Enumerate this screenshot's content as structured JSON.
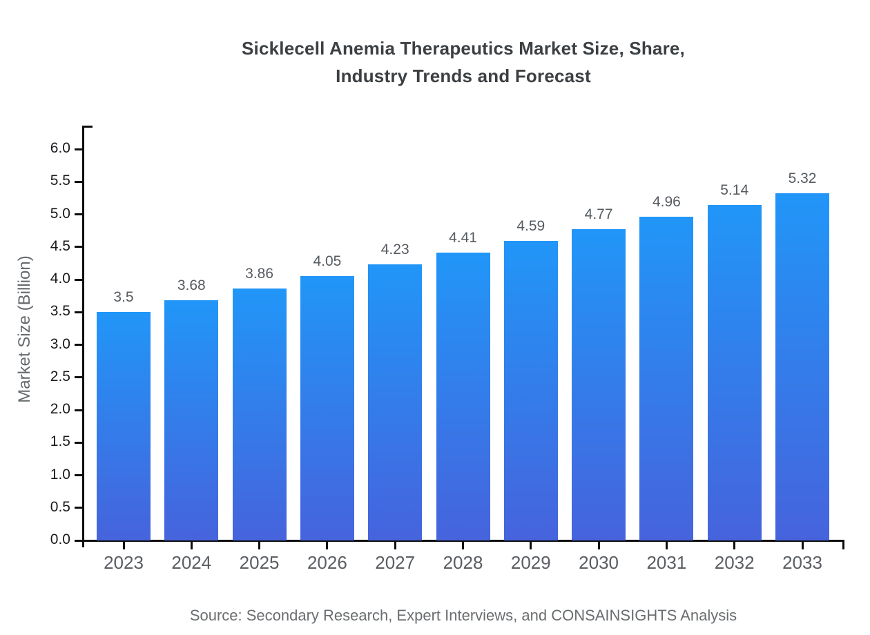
{
  "chart": {
    "title": "Sicklecell Anemia Therapeutics Market Size, Share,\nIndustry Trends and Forecast",
    "ylabel": "Market Size (Billion)",
    "source": "Source: Secondary Research, Expert Interviews, and CONSAINSIGHTS Analysis"
  },
  "chart_data": {
    "type": "bar",
    "title": "Sicklecell Anemia Therapeutics Market Size, Share, Industry Trends and Forecast",
    "xlabel": "",
    "ylabel": "Market Size (Billion)",
    "categories": [
      "2023",
      "2024",
      "2025",
      "2026",
      "2027",
      "2028",
      "2029",
      "2030",
      "2031",
      "2032",
      "2033"
    ],
    "values": [
      3.5,
      3.68,
      3.86,
      4.05,
      4.23,
      4.41,
      4.59,
      4.77,
      4.96,
      5.14,
      5.32
    ],
    "bar_labels": [
      "3.5",
      "3.68",
      "3.86",
      "4.05",
      "4.23",
      "4.41",
      "4.59",
      "4.77",
      "4.96",
      "5.14",
      "5.32"
    ],
    "ylim": [
      0,
      6.35
    ],
    "yticks": [
      0.0,
      0.5,
      1.0,
      1.5,
      2.0,
      2.5,
      3.0,
      3.5,
      4.0,
      4.5,
      5.0,
      5.5,
      6.0
    ],
    "grid": false,
    "legend_position": "none",
    "source": "Source: Secondary Research, Expert Interviews, and CONSAINSIGHTS Analysis",
    "colors": {
      "bar_gradient_top": "#2196F8",
      "bar_gradient_bottom": "#4663DC",
      "axis": "#0e0e0e",
      "title_text": "#3c4043",
      "value_label_text": "#565b60",
      "x_tick_text": "#5a5e62",
      "y_tick_text": "#17191c",
      "muted_text": "#6a6d70"
    }
  }
}
